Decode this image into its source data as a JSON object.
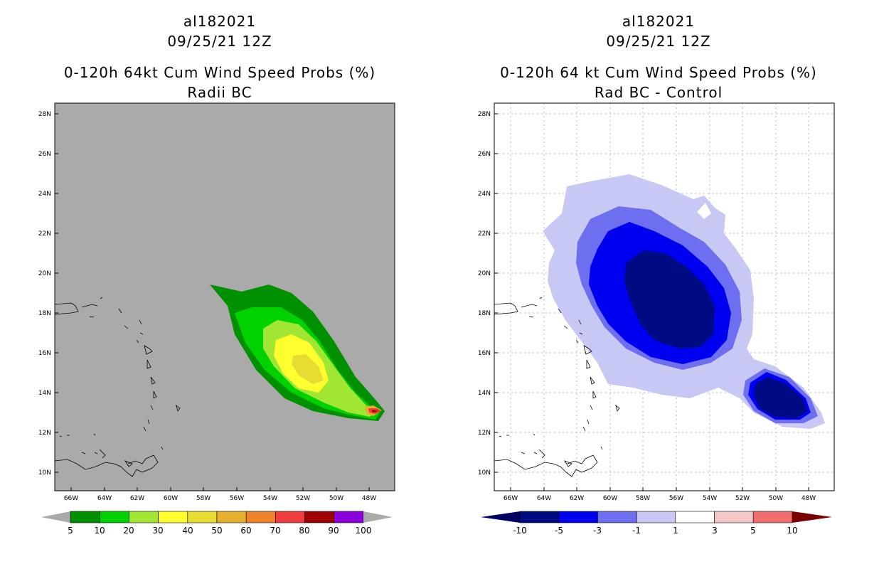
{
  "left_panel": {
    "title_line1": "al182021",
    "title_line2": "09/25/21 12Z",
    "title_line3": "0-120h 64kt Cum Wind Speed Probs (%)",
    "title_line4": "Radii BC",
    "lat_labels": [
      "28N",
      "26N",
      "24N",
      "22N",
      "20N",
      "18N",
      "16N",
      "14N",
      "12N",
      "10N"
    ],
    "lon_labels": [
      "66W",
      "64W",
      "62W",
      "60W",
      "58W",
      "56W",
      "54W",
      "52W",
      "50W",
      "48W"
    ],
    "colorbar_labels": [
      "5",
      "10",
      "20",
      "30",
      "40",
      "50",
      "60",
      "70",
      "80",
      "90",
      "100"
    ],
    "colorbar_colors": [
      "#009100",
      "#00d200",
      "#a0e632",
      "#ffff2d",
      "#e6dc32",
      "#e6af2d",
      "#f08228",
      "#f03c3c",
      "#a00000",
      "#8c00dc"
    ],
    "background_color": "#aaaaaa"
  },
  "right_panel": {
    "title_line1": "al182021",
    "title_line2": "09/25/21 12Z",
    "title_line3": "0-120h 64 kt Cum Wind Speed Probs (%)",
    "title_line4": "Rad BC - Control",
    "lat_labels": [
      "28N",
      "26N",
      "24N",
      "22N",
      "20N",
      "18N",
      "16N",
      "14N",
      "12N",
      "10N"
    ],
    "lon_labels": [
      "66W",
      "64W",
      "62W",
      "60W",
      "58W",
      "56W",
      "54W",
      "52W",
      "50W",
      "48W"
    ],
    "colorbar_labels": [
      "-10",
      "-5",
      "-3",
      "-1",
      "1",
      "3",
      "5",
      "10"
    ],
    "colorbar_colors": [
      "#000a82",
      "#0000f0",
      "#6e6ef0",
      "#c8c8f5",
      "#ffffff",
      "#f5c8c8",
      "#f06e6e",
      "#f00000"
    ],
    "colorbar_end_colors": [
      "#000064",
      "#780000"
    ]
  }
}
